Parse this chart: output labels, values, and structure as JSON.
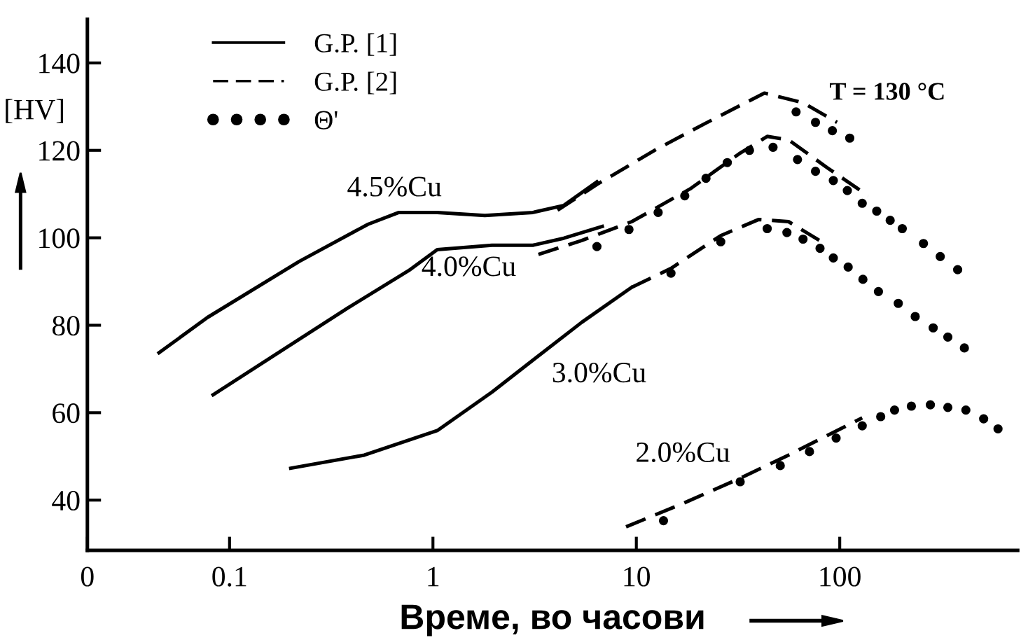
{
  "chart_data": {
    "type": "line",
    "xlabel": "Време, во часови",
    "ylabel": "[HV]",
    "log": "x",
    "xlim": [
      0.02,
      750
    ],
    "xticks": [
      {
        "value": 0.02,
        "label": "0"
      },
      0.1,
      1,
      10,
      100
    ],
    "ylim": [
      28.5,
      150
    ],
    "yticks": [
      40,
      60,
      80,
      100,
      120,
      140
    ],
    "grid": false,
    "legend": "top left",
    "annotations": [
      "T = 130 °C",
      "4.5%Cu",
      "4.0%Cu",
      "3.0%Cu",
      "2.0%Cu"
    ],
    "series": [
      {
        "name": "G.P. [1]",
        "line_style": "solid",
        "color": "#000000",
        "x": [
          0.045,
          0.078,
          0.22,
          0.48,
          0.68,
          1.05,
          1.8,
          3.1,
          4.4,
          6.4
        ],
        "values": [
          73.7,
          81.8,
          94.6,
          103.1,
          105.8,
          105.8,
          105.1,
          105.8,
          107.4,
          112.8
        ]
      },
      {
        "name": "G.P. [2]",
        "line_style": "dashed",
        "color": "#000000",
        "x": [
          4.1,
          6.4,
          12.5,
          21.7,
          42.6,
          66,
          97
        ],
        "values": [
          106.3,
          112.2,
          120.2,
          126.1,
          133.1,
          130.9,
          126.4
        ]
      },
      {
        "name": "Θ'",
        "type": "scatter",
        "marker": "circle",
        "color": "#000000",
        "x": [
          61,
          76,
          92,
          112
        ],
        "values": [
          128.8,
          126.4,
          124.5,
          122.8
        ]
      },
      {
        "line_style": "solid",
        "color": "#000000",
        "x": [
          0.083,
          0.38,
          0.76,
          1.05,
          1.95,
          3.1,
          4.4,
          6.8
        ],
        "values": [
          64.1,
          83.9,
          92.5,
          97.3,
          98.3,
          98.3,
          99.9,
          102.6
        ]
      },
      {
        "line_style": "dashed",
        "color": "#000000",
        "x": [
          3.3,
          5.4,
          9.5,
          18.4,
          32,
          44,
          56,
          87,
          138
        ],
        "values": [
          96.2,
          99.4,
          103.7,
          111.2,
          119.2,
          123.2,
          122.4,
          116,
          109.6
        ]
      },
      {
        "type": "scatter",
        "marker": "circle",
        "color": "#000000",
        "x": [
          6.4,
          9.2,
          12.8,
          17.3,
          22,
          28,
          36,
          47,
          62,
          76,
          93,
          109,
          129,
          152,
          177,
          203,
          258,
          312,
          380
        ],
        "values": [
          98.0,
          101.9,
          105.8,
          109.6,
          113.6,
          117.2,
          120.0,
          120.7,
          117.9,
          115.2,
          113.1,
          110.8,
          107.9,
          106.1,
          104.0,
          102.1,
          98.7,
          95.7,
          92.7
        ]
      },
      {
        "line_style": "solid",
        "color": "#000000",
        "x": [
          0.2,
          0.46,
          1.05,
          1.95,
          3.2,
          5.4,
          9.5
        ],
        "values": [
          47.3,
          50.3,
          55.9,
          64.7,
          72.5,
          80.7,
          88.7
        ]
      },
      {
        "line_style": "dashed",
        "color": "#000000",
        "x": [
          9.5,
          14.8,
          26,
          40,
          56,
          87
        ],
        "values": [
          88.7,
          93,
          100.5,
          104.2,
          103.7,
          98.3
        ]
      },
      {
        "type": "scatter",
        "marker": "circle",
        "color": "#000000",
        "x": [
          14.8,
          26,
          44,
          55,
          66,
          80,
          93,
          110,
          130,
          155,
          194,
          235,
          288,
          340,
          410
        ],
        "values": [
          91.9,
          99.1,
          102.1,
          101.2,
          99.7,
          97.6,
          95.4,
          93.3,
          90.5,
          87.7,
          85.0,
          82.0,
          79.4,
          77.3,
          74.8
        ]
      },
      {
        "line_style": "dashed",
        "color": "#000000",
        "x": [
          8.9,
          16.5,
          32,
          56,
          129
        ],
        "values": [
          33.9,
          39.0,
          44.9,
          50.3,
          58.8
        ]
      },
      {
        "type": "scatter",
        "marker": "circle",
        "color": "#000000",
        "x": [
          13.6,
          32.4,
          51,
          71,
          96,
          129,
          159,
          186,
          225,
          279,
          340,
          417,
          510,
          600
        ],
        "values": [
          35.3,
          44.2,
          47.9,
          51.1,
          54.2,
          57.0,
          59.1,
          60.6,
          61.5,
          61.8,
          61.2,
          60.6,
          58.6,
          56.3
        ]
      }
    ]
  }
}
